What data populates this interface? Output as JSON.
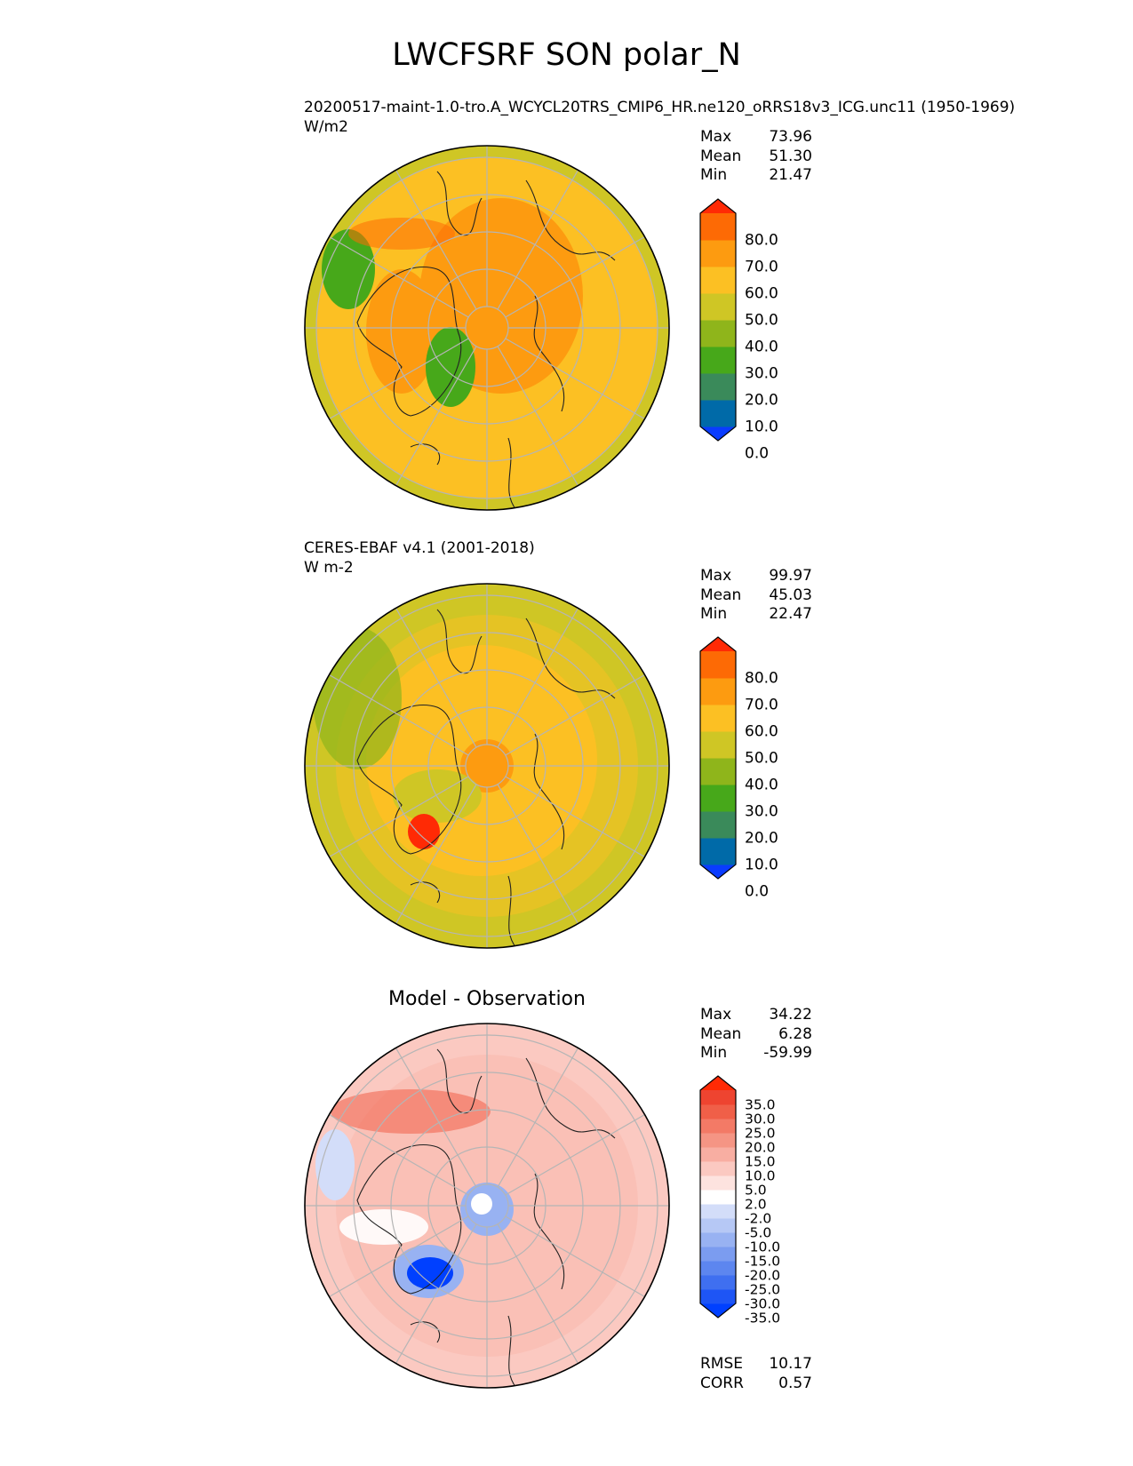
{
  "figure": {
    "title": "LWCFSRF SON polar_N"
  },
  "panels": [
    {
      "id": "model",
      "title_lines": [
        "20200517-maint-1.0-tro.A_WCYCL20TRS_CMIP6_HR.ne120_oRRS18v3_ICG.unc11 (1950-1969)",
        "W/m2"
      ],
      "stats": [
        {
          "label": "Max",
          "value": "73.96"
        },
        {
          "label": "Mean",
          "value": "51.30"
        },
        {
          "label": "Min",
          "value": "21.47"
        }
      ],
      "colorbar": {
        "labels": [
          "80.0",
          "70.0",
          "60.0",
          "50.0",
          "40.0",
          "30.0",
          "20.0",
          "10.0",
          "0.0"
        ],
        "colors_bottom_to_top": [
          "#0a3cff",
          "#006aa8",
          "#3a8a5a",
          "#47a81a",
          "#8fb51b",
          "#cfc625",
          "#fcc023",
          "#fd9b10",
          "#fd6a05",
          "#ff2a05"
        ]
      },
      "map": {
        "field_colors": {
          "low": "#47a81a",
          "mid_low": "#cfc625",
          "mid": "#fcc023",
          "high": "#fd9b10",
          "very_high": "#fd6a05"
        }
      }
    },
    {
      "id": "obs",
      "title_lines": [
        "CERES-EBAF v4.1 (2001-2018)",
        "W m-2"
      ],
      "stats": [
        {
          "label": "Max",
          "value": "99.97"
        },
        {
          "label": "Mean",
          "value": "45.03"
        },
        {
          "label": "Min",
          "value": "22.47"
        }
      ],
      "colorbar": {
        "labels": [
          "80.0",
          "70.0",
          "60.0",
          "50.0",
          "40.0",
          "30.0",
          "20.0",
          "10.0",
          "0.0"
        ],
        "colors_bottom_to_top": [
          "#0a3cff",
          "#006aa8",
          "#3a8a5a",
          "#47a81a",
          "#8fb51b",
          "#cfc625",
          "#fcc023",
          "#fd9b10",
          "#fd6a05",
          "#ff2a05"
        ]
      },
      "map": {
        "field_colors": {
          "low": "#8fb51b",
          "mid_low": "#cfc625",
          "mid": "#fcc023",
          "high": "#fd9b10",
          "very_high": "#ff2a05"
        }
      }
    },
    {
      "id": "diff",
      "title_lines": [
        "Model - Observation"
      ],
      "stats": [
        {
          "label": "Max",
          "value": "34.22"
        },
        {
          "label": "Mean",
          "value": "6.28"
        },
        {
          "label": "Min",
          "value": "-59.99"
        }
      ],
      "colorbar": {
        "labels": [
          "35.0",
          "30.0",
          "25.0",
          "20.0",
          "15.0",
          "10.0",
          "5.0",
          "2.0",
          "-2.0",
          "-5.0",
          "-10.0",
          "-15.0",
          "-20.0",
          "-25.0",
          "-30.0",
          "-35.0"
        ],
        "colors_bottom_to_top": [
          "#0040ff",
          "#1e55f5",
          "#3f6ff0",
          "#5d86ef",
          "#7b9cf0",
          "#98b2f2",
          "#b6c8f5",
          "#d3ddf9",
          "#ffffff",
          "#fde3df",
          "#fbc9c1",
          "#f8aea2",
          "#f59584",
          "#f37a66",
          "#f05f48",
          "#ee4430",
          "#ff2a05"
        ]
      },
      "map": {
        "field_colors": {
          "low": "#0040ff",
          "mid_low": "#98b2f2",
          "mid": "#ffffff",
          "high": "#f8aea2",
          "very_high": "#f05f48"
        }
      },
      "metrics": [
        {
          "label": "RMSE",
          "value": "10.17"
        },
        {
          "label": "CORR",
          "value": "0.57"
        }
      ]
    }
  ]
}
